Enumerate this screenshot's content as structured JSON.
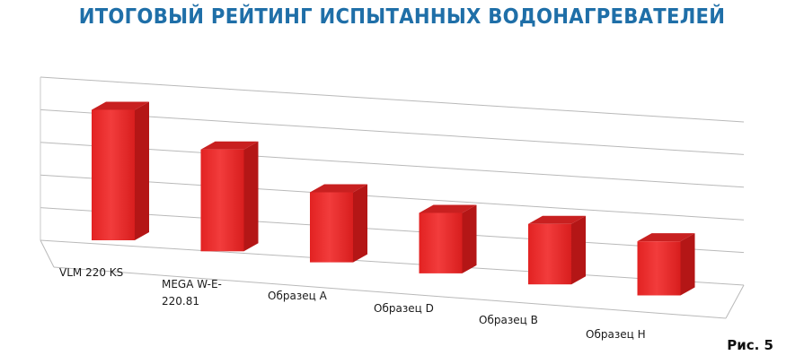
{
  "chart_data": {
    "type": "bar",
    "title": "ИТОГОВЫЙ РЕЙТИНГ ИСПЫТАННЫХ ВОДОНАГРЕВАТЕЛЕЙ",
    "categories": [
      "VLM 220 KS",
      "MEGA W-E-220.81",
      "Образец А",
      "Образец D",
      "Образец В",
      "Образец Н"
    ],
    "category_lines": [
      [
        "VLM 220 KS"
      ],
      [
        "MEGA W-E-",
        "220.81"
      ],
      [
        "Образец А"
      ],
      [
        "Образец D"
      ],
      [
        "Образец В"
      ],
      [
        "Образец Н"
      ]
    ],
    "values": [
      4.1,
      3.2,
      2.2,
      1.9,
      1.9,
      1.7
    ],
    "ylim": [
      0,
      5
    ],
    "grid": true,
    "three_d": true,
    "bar_color": "#ee2b2b",
    "legend": false
  },
  "caption": "Рис. 5"
}
